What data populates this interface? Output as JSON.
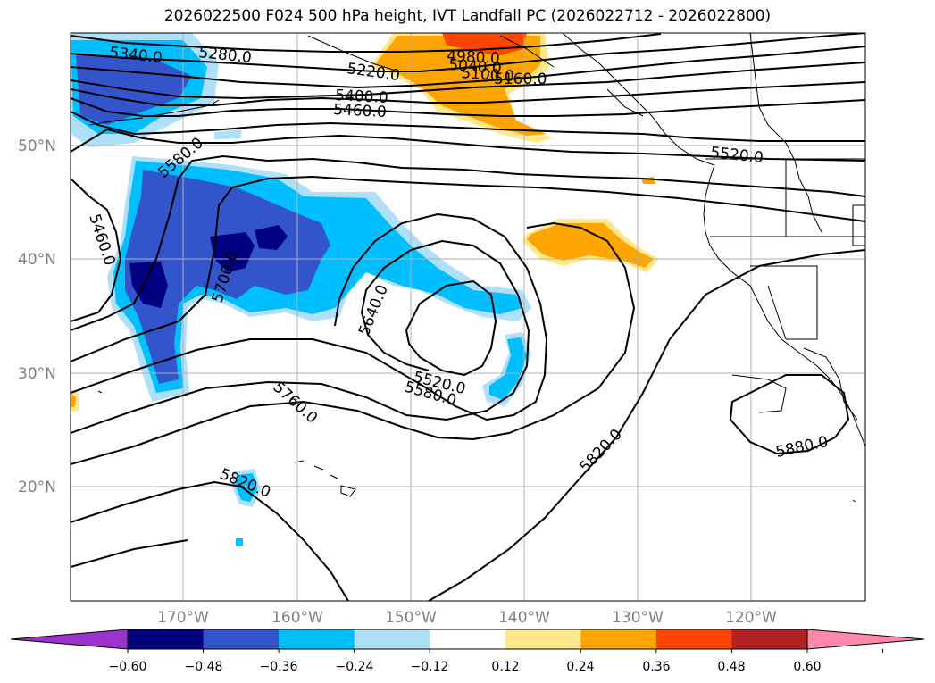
{
  "title": "2026022500 F024 500 hPa height, IVT Landfall PC (2026022712 - 2026022800)",
  "map": {
    "lat_labels": [
      "50°N",
      "40°N",
      "30°N",
      "20°N"
    ],
    "lon_labels": [
      "170°W",
      "160°W",
      "150°W",
      "140°W",
      "130°W",
      "120°W"
    ],
    "contour_labels": [
      "5340.0",
      "5280.0",
      "5220.0",
      "4980.0",
      "5040.0",
      "5100.0",
      "5160.0",
      "5400.0",
      "5460.0",
      "5580.0",
      "5460.0",
      "5520.0",
      "5700.0",
      "5640.0",
      "5520.0",
      "5580.0",
      "5760.0",
      "5820.0",
      "5820.0",
      "5880.0"
    ]
  },
  "colorbar": {
    "ticks": [
      "−0.60",
      "−0.48",
      "−0.36",
      "−0.24",
      "−0.12",
      "0.12",
      "0.24",
      "0.36",
      "0.48",
      "0.60"
    ],
    "colors": [
      "#9933cc",
      "#000080",
      "#3355cc",
      "#00bfff",
      "#aee0fa",
      "#ffffff",
      "#ffe88a",
      "#ffa500",
      "#ff4500",
      "#b22222",
      "#ff88aa"
    ]
  }
}
